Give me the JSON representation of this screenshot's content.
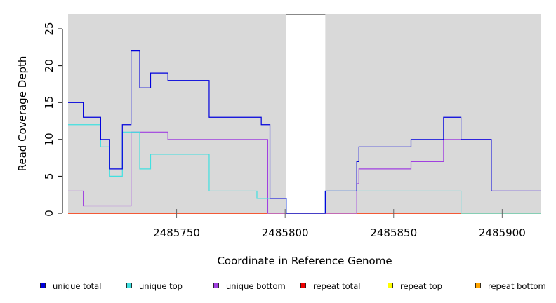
{
  "chart_data": {
    "type": "line",
    "step": true,
    "xlabel": "Coordinate in Reference Genome",
    "ylabel": "Read Coverage Depth",
    "xlim": [
      2485700,
      2485918
    ],
    "ylim": [
      0,
      27
    ],
    "x_ticks": [
      2485750,
      2485800,
      2485850,
      2485900
    ],
    "y_ticks": [
      0,
      5,
      10,
      15,
      20,
      25
    ],
    "gap_region": [
      2485800.5,
      2485818.5
    ],
    "plot_background": "#d9d9d9",
    "legend_position": "bottom",
    "series": [
      {
        "name": "unique total",
        "color": "#0000dd",
        "points": [
          [
            2485700,
            15
          ],
          [
            2485707,
            15
          ],
          [
            2485707,
            13
          ],
          [
            2485715,
            13
          ],
          [
            2485715,
            10
          ],
          [
            2485719,
            10
          ],
          [
            2485719,
            6
          ],
          [
            2485725,
            6
          ],
          [
            2485725,
            12
          ],
          [
            2485729,
            12
          ],
          [
            2485729,
            22
          ],
          [
            2485733,
            22
          ],
          [
            2485733,
            17
          ],
          [
            2485738,
            17
          ],
          [
            2485738,
            19
          ],
          [
            2485746,
            19
          ],
          [
            2485746,
            18
          ],
          [
            2485765,
            18
          ],
          [
            2485765,
            13
          ],
          [
            2485789,
            13
          ],
          [
            2485789,
            12
          ],
          [
            2485793,
            12
          ],
          [
            2485793,
            2
          ],
          [
            2485800.5,
            2
          ],
          [
            2485800.5,
            0
          ],
          [
            2485818.5,
            0
          ],
          [
            2485818.5,
            3
          ],
          [
            2485833,
            3
          ],
          [
            2485833,
            7
          ],
          [
            2485834,
            7
          ],
          [
            2485834,
            9
          ],
          [
            2485858,
            9
          ],
          [
            2485858,
            10
          ],
          [
            2485873,
            10
          ],
          [
            2485873,
            13
          ],
          [
            2485881,
            13
          ],
          [
            2485881,
            10
          ],
          [
            2485895,
            10
          ],
          [
            2485895,
            3
          ],
          [
            2485918,
            3
          ]
        ]
      },
      {
        "name": "unique top",
        "color": "#40e0e0",
        "points": [
          [
            2485700,
            12
          ],
          [
            2485715,
            12
          ],
          [
            2485715,
            9
          ],
          [
            2485719,
            9
          ],
          [
            2485719,
            5
          ],
          [
            2485725,
            5
          ],
          [
            2485725,
            11
          ],
          [
            2485733,
            11
          ],
          [
            2485733,
            6
          ],
          [
            2485738,
            6
          ],
          [
            2485738,
            8
          ],
          [
            2485765,
            8
          ],
          [
            2485765,
            3
          ],
          [
            2485787,
            3
          ],
          [
            2485787,
            2
          ],
          [
            2485800.5,
            2
          ],
          [
            2485800.5,
            0
          ],
          [
            2485818.5,
            0
          ],
          [
            2485818.5,
            3
          ],
          [
            2485881,
            3
          ],
          [
            2485881,
            0
          ],
          [
            2485918,
            0
          ]
        ]
      },
      {
        "name": "unique bottom",
        "color": "#a040e0",
        "points": [
          [
            2485700,
            3
          ],
          [
            2485707,
            3
          ],
          [
            2485707,
            1
          ],
          [
            2485729,
            1
          ],
          [
            2485729,
            11
          ],
          [
            2485746,
            11
          ],
          [
            2485746,
            10
          ],
          [
            2485792,
            10
          ],
          [
            2485792,
            0
          ],
          [
            2485833,
            0
          ],
          [
            2485833,
            4
          ],
          [
            2485834,
            4
          ],
          [
            2485834,
            6
          ],
          [
            2485858,
            6
          ],
          [
            2485858,
            7
          ],
          [
            2485873,
            7
          ],
          [
            2485873,
            10
          ],
          [
            2485895,
            10
          ],
          [
            2485895,
            3
          ],
          [
            2485918,
            3
          ]
        ]
      },
      {
        "name": "repeat total",
        "color": "#ee0000",
        "points": [
          [
            2485700,
            0
          ],
          [
            2485918,
            0
          ]
        ]
      },
      {
        "name": "repeat top",
        "color": "#ffff00",
        "points": [
          [
            2485700,
            0
          ],
          [
            2485918,
            0
          ]
        ]
      },
      {
        "name": "repeat bottom",
        "color": "#ffa500",
        "points": [
          [
            2485700,
            0
          ],
          [
            2485918,
            0
          ]
        ]
      }
    ]
  }
}
